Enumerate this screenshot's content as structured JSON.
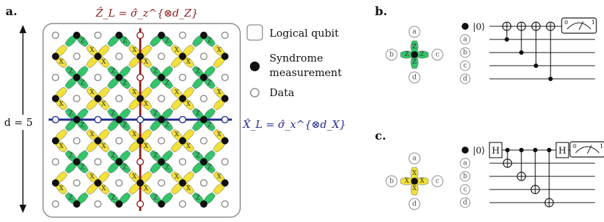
{
  "panels": {
    "a": "a.",
    "b": "b.",
    "c": "c."
  },
  "lattice": {
    "distance_label": "d = 5",
    "z_logical_label": "Ẑ_L = σ̂_z^{⊗d_Z}",
    "x_logical_label": "X̂_L = σ̂_x^{⊗d_X}",
    "x_stab_glyph": "X",
    "z_stab_glyph": "Z"
  },
  "legend": {
    "logical_qubit": "Logical qubit",
    "syndrome_line1": "Syndrome",
    "syndrome_line2": "measurement",
    "data": "Data"
  },
  "circuit_b": {
    "ket": "|0⟩",
    "wire_labels": [
      "a",
      "b",
      "c",
      "d"
    ],
    "star_glyph": "Z",
    "meter_ticks": [
      "0",
      "1"
    ]
  },
  "circuit_c": {
    "ket": "|0⟩",
    "wire_labels": [
      "a",
      "b",
      "c",
      "d"
    ],
    "star_glyph": "X",
    "hadamard": "H",
    "meter_ticks": [
      "0",
      "1"
    ]
  },
  "colors": {
    "x_stabilizer": "#f2e13a",
    "z_stabilizer": "#34c46a",
    "z_logical": "#8b1a1a",
    "x_logical": "#1f2a8c",
    "frame": "#888888"
  }
}
